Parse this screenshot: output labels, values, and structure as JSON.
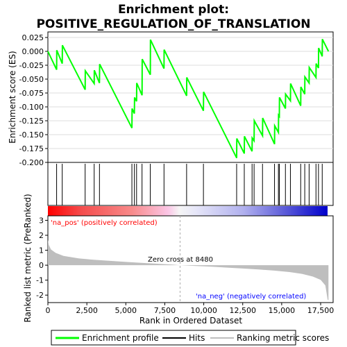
{
  "title_line1": "Enrichment plot:",
  "title_line2": "POSITIVE_REGULATION_OF_TRANSLATION",
  "colors": {
    "es_line": "#00ff00",
    "hits": "#000000",
    "ranking_fill": "#bebebe",
    "pos_label": "#ff0000",
    "neg_label": "#0000ff",
    "zero_line": "#aaaaaa"
  },
  "chart_data": {
    "type": "line",
    "x_range": [
      0,
      18300
    ],
    "x_ticks": [
      0,
      2500,
      5000,
      7500,
      10000,
      12500,
      15000,
      17500
    ],
    "x_tick_labels": [
      "0",
      "2,500",
      "5,000",
      "7,500",
      "10,000",
      "12,500",
      "15,000",
      "17,500"
    ],
    "xlabel": "Rank in Ordered Dataset",
    "es_panel": {
      "ylabel": "Enrichment score (ES)",
      "ylim": [
        -0.2,
        0.035
      ],
      "y_ticks": [
        0.025,
        0.0,
        -0.025,
        -0.05,
        -0.075,
        -0.1,
        -0.125,
        -0.15,
        -0.175,
        -0.2
      ],
      "y_tick_labels": [
        "0.025",
        "0.000",
        "-0.025",
        "-0.050",
        "-0.075",
        "-0.100",
        "-0.125",
        "-0.150",
        "-0.175",
        "-0.200"
      ],
      "es_points": [
        [
          0,
          0.0
        ],
        [
          560,
          -0.033
        ],
        [
          570,
          0.002
        ],
        [
          920,
          -0.022
        ],
        [
          930,
          0.011
        ],
        [
          2390,
          -0.069
        ],
        [
          2400,
          -0.035
        ],
        [
          2970,
          -0.058
        ],
        [
          2980,
          -0.034
        ],
        [
          3310,
          -0.057
        ],
        [
          3320,
          -0.023
        ],
        [
          5390,
          -0.138
        ],
        [
          5400,
          -0.103
        ],
        [
          5550,
          -0.112
        ],
        [
          5560,
          -0.083
        ],
        [
          5690,
          -0.09
        ],
        [
          5700,
          -0.057
        ],
        [
          6040,
          -0.079
        ],
        [
          6050,
          -0.014
        ],
        [
          6570,
          -0.042
        ],
        [
          6580,
          0.021
        ],
        [
          7450,
          -0.031
        ],
        [
          7460,
          0.003
        ],
        [
          8900,
          -0.08
        ],
        [
          8910,
          -0.047
        ],
        [
          9980,
          -0.107
        ],
        [
          9990,
          -0.073
        ],
        [
          12110,
          -0.192
        ],
        [
          12120,
          -0.157
        ],
        [
          12600,
          -0.184
        ],
        [
          12610,
          -0.153
        ],
        [
          13100,
          -0.18
        ],
        [
          13110,
          -0.156
        ],
        [
          13230,
          -0.161
        ],
        [
          13240,
          -0.125
        ],
        [
          13770,
          -0.152
        ],
        [
          13780,
          -0.12
        ],
        [
          14540,
          -0.167
        ],
        [
          14550,
          -0.134
        ],
        [
          14790,
          -0.146
        ],
        [
          14800,
          -0.115
        ],
        [
          14850,
          -0.117
        ],
        [
          14860,
          -0.083
        ],
        [
          15240,
          -0.103
        ],
        [
          15250,
          -0.077
        ],
        [
          15560,
          -0.089
        ],
        [
          15570,
          -0.058
        ],
        [
          16220,
          -0.098
        ],
        [
          16230,
          -0.064
        ],
        [
          16480,
          -0.077
        ],
        [
          16490,
          -0.046
        ],
        [
          16760,
          -0.057
        ],
        [
          16770,
          -0.029
        ],
        [
          17200,
          -0.047
        ],
        [
          17210,
          -0.022
        ],
        [
          17360,
          -0.03
        ],
        [
          17370,
          0.006
        ],
        [
          17600,
          -0.009
        ],
        [
          17610,
          0.022
        ],
        [
          18000,
          0.0
        ]
      ]
    },
    "hits": [
      560,
      920,
      2390,
      2970,
      3310,
      5390,
      5550,
      5690,
      6040,
      6570,
      7450,
      8900,
      9980,
      12110,
      12600,
      13100,
      13230,
      13770,
      14540,
      14790,
      14850,
      15240,
      15560,
      16220,
      16480,
      16760,
      17200,
      17360,
      17600
    ],
    "ranking_panel": {
      "ylabel": "Ranked list metric (PreRanked)",
      "ylim": [
        -2.5,
        3.3
      ],
      "y_ticks": [
        3,
        2,
        1,
        0,
        -1,
        -2
      ],
      "y_tick_labels": [
        "3",
        "2",
        "1",
        "0",
        "-1",
        "-2"
      ],
      "metric_points": [
        [
          0,
          1.7
        ],
        [
          60,
          1.35
        ],
        [
          200,
          1.05
        ],
        [
          500,
          0.82
        ],
        [
          1000,
          0.62
        ],
        [
          2000,
          0.45
        ],
        [
          3000,
          0.36
        ],
        [
          4000,
          0.29
        ],
        [
          5000,
          0.22
        ],
        [
          6000,
          0.16
        ],
        [
          7000,
          0.1
        ],
        [
          8000,
          0.04
        ],
        [
          8480,
          0.0
        ],
        [
          9500,
          -0.05
        ],
        [
          10500,
          -0.1
        ],
        [
          11500,
          -0.16
        ],
        [
          12500,
          -0.22
        ],
        [
          13500,
          -0.28
        ],
        [
          14500,
          -0.36
        ],
        [
          15500,
          -0.46
        ],
        [
          16300,
          -0.58
        ],
        [
          17000,
          -0.76
        ],
        [
          17500,
          -0.98
        ],
        [
          17800,
          -1.35
        ],
        [
          17950,
          -2.3
        ],
        [
          18000,
          -2.35
        ]
      ],
      "zero_cross_label": "Zero cross at 8480",
      "zero_cross_x": 8480,
      "pos_label": "'na_pos' (positively correlated)",
      "neg_label": "'na_neg' (negatively correlated)"
    }
  },
  "legend": {
    "items": [
      {
        "label": "Enrichment profile"
      },
      {
        "label": "Hits"
      },
      {
        "label": "Ranking metric scores"
      }
    ]
  }
}
